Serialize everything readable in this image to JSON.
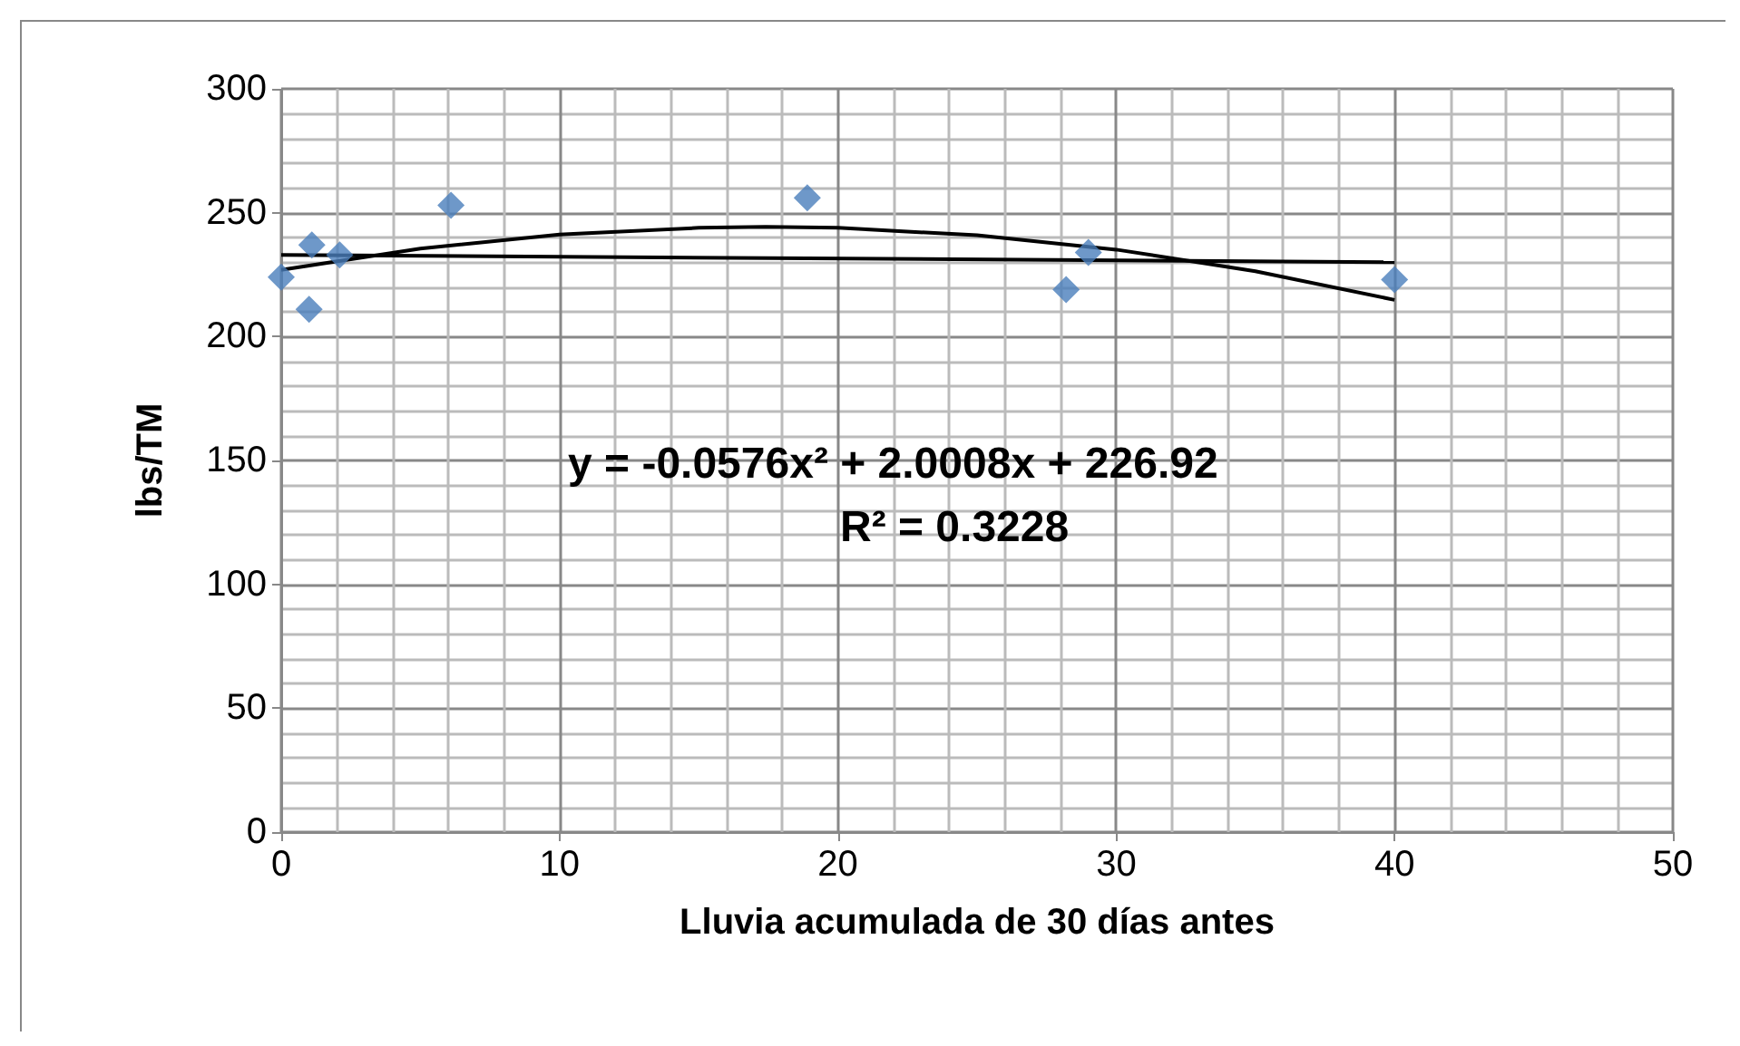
{
  "chart_data": {
    "type": "scatter",
    "xlabel": "Lluvia acumulada de 30 días antes",
    "ylabel": "lbs/TM",
    "xlim": [
      0,
      50
    ],
    "xticks": [
      0,
      10,
      20,
      30,
      40,
      50
    ],
    "ylim": [
      0,
      300
    ],
    "yticks": [
      0,
      50,
      100,
      150,
      200,
      250,
      300
    ],
    "grid": true,
    "marker": "diamond",
    "annotations": [
      "y = -0.0576x² + 2.0008x + 226.92",
      "R² = 0.3228"
    ],
    "series": [
      {
        "color": "#4a7ebb",
        "x": [
          0,
          1.1,
          1,
          2.1,
          6.1,
          18.9,
          28.2,
          29,
          40
        ],
        "values": [
          224,
          237,
          211,
          233,
          253,
          256,
          219,
          234,
          223
        ]
      },
      {
        "type": "line",
        "color": "#000000",
        "marker": "none",
        "x": [
          0,
          5,
          10,
          15,
          17.4,
          20,
          25,
          30,
          35,
          40
        ],
        "values": [
          226.9,
          235.5,
          241.2,
          243.9,
          244.3,
          243.9,
          240.9,
          235.1,
          226.4,
          214.8
        ]
      },
      {
        "type": "line",
        "color": "#000000",
        "marker": "none",
        "x": [
          0,
          40
        ],
        "values": [
          233,
          230
        ]
      }
    ]
  }
}
